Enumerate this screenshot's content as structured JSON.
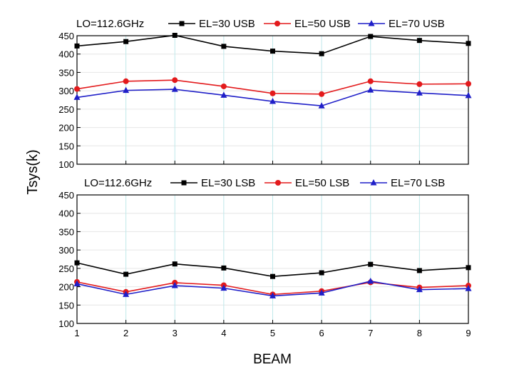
{
  "chart_data": [
    {
      "type": "line",
      "annotation": "LO=112.6GHz",
      "x": [
        1,
        2,
        3,
        4,
        5,
        6,
        7,
        8,
        9
      ],
      "ylim": [
        100,
        450
      ],
      "yticks": [
        100,
        150,
        200,
        250,
        300,
        350,
        400,
        450
      ],
      "grid": true,
      "legend_position": "top",
      "series": [
        {
          "name": "EL=30 USB",
          "color": "#000000",
          "marker": "square",
          "values": [
            422,
            434,
            451,
            421,
            408,
            401,
            448,
            437,
            429
          ]
        },
        {
          "name": "EL=50 USB",
          "color": "#e31a1c",
          "marker": "circle",
          "values": [
            305,
            326,
            329,
            312,
            293,
            291,
            326,
            318,
            319
          ]
        },
        {
          "name": "EL=70 USB",
          "color": "#1f1fc8",
          "marker": "triangle",
          "values": [
            282,
            301,
            304,
            288,
            271,
            259,
            302,
            294,
            287
          ]
        }
      ]
    },
    {
      "type": "line",
      "annotation": "LO=112.6GHz",
      "x": [
        1,
        2,
        3,
        4,
        5,
        6,
        7,
        8,
        9
      ],
      "xticks": [
        "1",
        "2",
        "3",
        "4",
        "5",
        "6",
        "7",
        "8",
        "9"
      ],
      "ylim": [
        100,
        450
      ],
      "yticks": [
        100,
        150,
        200,
        250,
        300,
        350,
        400,
        450
      ],
      "grid": true,
      "legend_position": "top",
      "series": [
        {
          "name": "EL=30 LSB",
          "color": "#000000",
          "marker": "square",
          "values": [
            265,
            234,
            262,
            251,
            228,
            238,
            261,
            244,
            252
          ]
        },
        {
          "name": "EL=50 LSB",
          "color": "#e31a1c",
          "marker": "circle",
          "values": [
            213,
            186,
            211,
            204,
            179,
            188,
            212,
            198,
            203
          ]
        },
        {
          "name": "EL=70 LSB",
          "color": "#1f1fc8",
          "marker": "triangle",
          "values": [
            208,
            179,
            203,
            196,
            175,
            183,
            215,
            192,
            195
          ]
        }
      ]
    }
  ],
  "axes": {
    "ylabel": "Tsys(k)",
    "xlabel": "BEAM"
  }
}
